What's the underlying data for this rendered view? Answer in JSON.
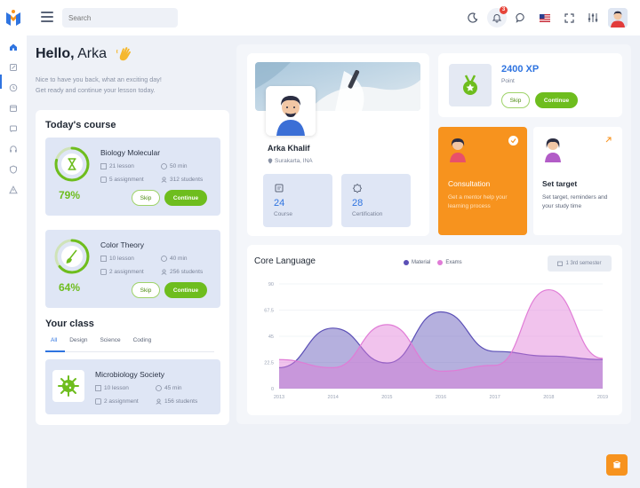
{
  "search": {
    "placeholder": "Search"
  },
  "notifications": {
    "count": "3"
  },
  "greeting": {
    "hello": "Hello,",
    "name": "Arka",
    "line1": "Nice to have you back, what an exciting day!",
    "line2": "Get ready and continue your lesson today."
  },
  "todays_course": {
    "title": "Today's course",
    "skip_label": "Skip",
    "continue_label": "Continue",
    "courses": [
      {
        "name": "Biology Molecular",
        "lessons": "21 lesson",
        "duration": "50 min",
        "assignments": "5 assignment",
        "students": "312 students",
        "progress_label": "79%",
        "progress": 0.79
      },
      {
        "name": "Color Theory",
        "lessons": "10 lesson",
        "duration": "40 min",
        "assignments": "2 assignment",
        "students": "256 students",
        "progress_label": "64%",
        "progress": 0.64
      }
    ]
  },
  "your_class": {
    "title": "Your class",
    "tabs": [
      "All",
      "Design",
      "Science",
      "Coding"
    ],
    "active_tab": "All",
    "classes": [
      {
        "name": "Microbiology Society",
        "lessons": "10 lesson",
        "duration": "45 min",
        "assignments": "2 assignment",
        "students": "156 students"
      }
    ]
  },
  "profile": {
    "name": "Arka Khalif",
    "location": "Surakarta, INA",
    "stats": [
      {
        "value": "24",
        "label": "Course"
      },
      {
        "value": "28",
        "label": "Certification"
      }
    ]
  },
  "points": {
    "value": "2400 XP",
    "label": "Point",
    "skip_label": "Skip",
    "continue_label": "Continue"
  },
  "consultation": {
    "title": "Consultation",
    "description": "Get a mentor help your learning process"
  },
  "set_target": {
    "title": "Set target",
    "description": "Set target, reminders and your study time"
  },
  "core_language": {
    "title": "Core Language",
    "semester_label": "1 3rd semester",
    "legend": [
      {
        "name": "Material",
        "color": "#5b4fb6"
      },
      {
        "name": "Exams",
        "color": "#e07bd6"
      }
    ]
  },
  "chart_data": {
    "type": "area",
    "title": "Core Language",
    "x": [
      "2013",
      "2014",
      "2015",
      "2016",
      "2017",
      "2018",
      "2019"
    ],
    "y_ticks": [
      "0",
      "22.5",
      "45",
      "67.5",
      "90"
    ],
    "ylim": [
      0,
      90
    ],
    "grid": true,
    "legend_position": "top",
    "series": [
      {
        "name": "Material",
        "color": "#5b4fb6",
        "values": [
          18,
          52,
          22,
          66,
          32,
          28,
          25
        ]
      },
      {
        "name": "Exams",
        "color": "#e07bd6",
        "values": [
          25,
          18,
          55,
          15,
          20,
          85,
          26
        ]
      }
    ]
  }
}
